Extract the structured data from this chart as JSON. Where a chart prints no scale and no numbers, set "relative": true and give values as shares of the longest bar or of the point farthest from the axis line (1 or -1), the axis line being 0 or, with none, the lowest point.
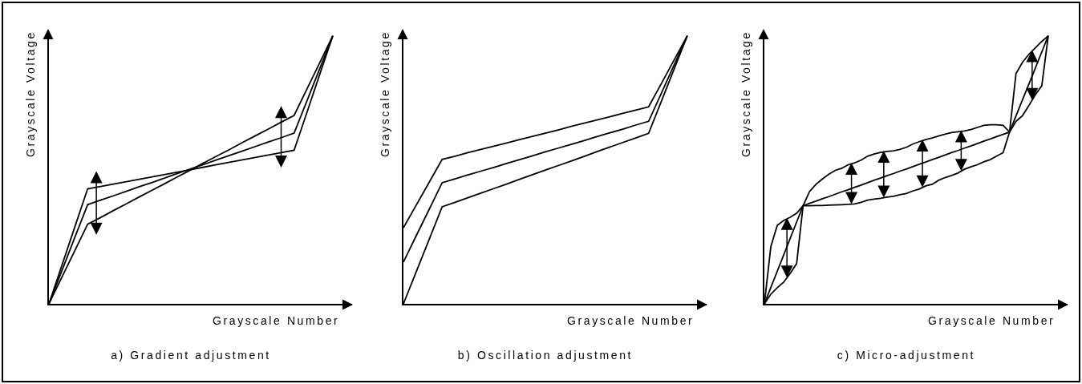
{
  "chart_data": [
    {
      "type": "line",
      "title": "a) Gradient adjustment",
      "xlabel": "Grayscale Number",
      "ylabel": "Grayscale Voltage",
      "relative": true,
      "categories": [
        null,
        null,
        null,
        null,
        null,
        null,
        null,
        null,
        null,
        null,
        null,
        null,
        null,
        null,
        null,
        null,
        null,
        null,
        null,
        null,
        null,
        null,
        null
      ],
      "series": [
        {
          "color": "#000000",
          "values": [
            0,
            0.143,
            0.286,
            0.429,
            0.438,
            0.447,
            0.456,
            0.465,
            0.474,
            0.483,
            0.492,
            0.501,
            0.51,
            0.519,
            0.528,
            0.537,
            0.546,
            0.555,
            0.564,
            0.573,
            0.715,
            0.858,
            1
          ]
        },
        {
          "color": "#000000",
          "values": [
            0,
            0.123,
            0.247,
            0.37,
            0.387,
            0.403,
            0.42,
            0.437,
            0.453,
            0.47,
            0.487,
            0.504,
            0.52,
            0.537,
            0.554,
            0.57,
            0.587,
            0.604,
            0.62,
            0.637,
            0.758,
            0.879,
            1
          ]
        },
        {
          "color": "#000000",
          "values": [
            0,
            0.099,
            0.198,
            0.297,
            0.322,
            0.348,
            0.373,
            0.399,
            0.424,
            0.449,
            0.475,
            0.5,
            0.526,
            0.551,
            0.576,
            0.602,
            0.627,
            0.652,
            0.678,
            0.703,
            0.802,
            0.901,
            1
          ]
        }
      ]
    },
    {
      "type": "line",
      "title": "b) Oscillation adjustment",
      "xlabel": "Grayscale Number",
      "ylabel": "Grayscale Voltage",
      "relative": true,
      "categories": [
        null,
        null,
        null,
        null,
        null,
        null,
        null,
        null,
        null,
        null,
        null,
        null,
        null,
        null,
        null,
        null,
        null,
        null,
        null,
        null,
        null,
        null,
        null
      ],
      "series": [
        {
          "color": "#000000",
          "values": [
            0.284,
            0.369,
            0.454,
            0.539,
            0.551,
            0.564,
            0.576,
            0.588,
            0.6,
            0.613,
            0.625,
            0.637,
            0.649,
            0.662,
            0.674,
            0.686,
            0.698,
            0.711,
            0.723,
            0.735,
            0.823,
            0.912,
            1
          ]
        },
        {
          "color": "#000000",
          "values": [
            0.156,
            0.255,
            0.353,
            0.452,
            0.466,
            0.481,
            0.495,
            0.509,
            0.524,
            0.538,
            0.552,
            0.567,
            0.581,
            0.595,
            0.609,
            0.624,
            0.638,
            0.652,
            0.667,
            0.681,
            0.787,
            0.894,
            1
          ]
        },
        {
          "color": "#000000",
          "values": [
            0,
            0.121,
            0.241,
            0.362,
            0.379,
            0.396,
            0.413,
            0.43,
            0.447,
            0.465,
            0.482,
            0.499,
            0.516,
            0.533,
            0.55,
            0.568,
            0.585,
            0.602,
            0.619,
            0.636,
            0.757,
            0.879,
            1
          ]
        }
      ]
    },
    {
      "type": "line",
      "title": "c) Micro-adjustment",
      "xlabel": "Grayscale Number",
      "ylabel": "Grayscale Voltage",
      "relative": true,
      "categories": [
        null,
        null,
        null,
        null,
        null,
        null,
        null,
        null,
        null,
        null,
        null,
        null,
        null,
        null,
        null,
        null,
        null,
        null,
        null,
        null,
        null,
        null,
        null,
        null,
        null,
        null,
        null,
        null,
        null,
        null,
        null,
        null,
        null,
        null,
        null,
        null,
        null,
        null,
        null,
        null,
        null,
        null,
        null,
        null,
        null
      ],
      "series": [
        {
          "color": "#000000",
          "values": [
            0,
            0.061,
            0.122,
            0.183,
            0.244,
            0.305,
            0.366,
            0.375,
            0.383,
            0.392,
            0.4,
            0.409,
            0.418,
            0.426,
            0.435,
            0.443,
            0.452,
            0.461,
            0.469,
            0.478,
            0.486,
            0.495,
            0.503,
            0.512,
            0.521,
            0.529,
            0.538,
            0.546,
            0.555,
            0.564,
            0.572,
            0.581,
            0.589,
            0.598,
            0.607,
            0.615,
            0.624,
            0.632,
            0.641,
            0.701,
            0.761,
            0.82,
            0.88,
            0.94,
            1
          ]
        },
        {
          "color": "#000000",
          "values": [
            0,
            0.213,
            0.293,
            0.311,
            0.323,
            0.338,
            0.366,
            0.419,
            0.446,
            0.466,
            0.484,
            0.498,
            0.506,
            0.519,
            0.526,
            0.536,
            0.551,
            0.559,
            0.565,
            0.569,
            0.571,
            0.576,
            0.584,
            0.596,
            0.605,
            0.613,
            0.619,
            0.626,
            0.633,
            0.639,
            0.642,
            0.645,
            0.65,
            0.658,
            0.666,
            0.668,
            0.668,
            0.666,
            0.641,
            0.859,
            0.901,
            0.931,
            0.955,
            0.979,
            1
          ]
        },
        {
          "color": "#000000",
          "values": [
            0,
            0.036,
            0.06,
            0.081,
            0.114,
            0.15,
            0.366,
            0.366,
            0.367,
            0.367,
            0.368,
            0.369,
            0.37,
            0.371,
            0.373,
            0.379,
            0.387,
            0.391,
            0.394,
            0.398,
            0.401,
            0.407,
            0.412,
            0.421,
            0.428,
            0.44,
            0.446,
            0.461,
            0.471,
            0.479,
            0.488,
            0.502,
            0.511,
            0.519,
            0.53,
            0.538,
            0.551,
            0.564,
            0.641,
            0.681,
            0.702,
            0.74,
            0.78,
            0.814,
            1
          ]
        }
      ]
    }
  ]
}
